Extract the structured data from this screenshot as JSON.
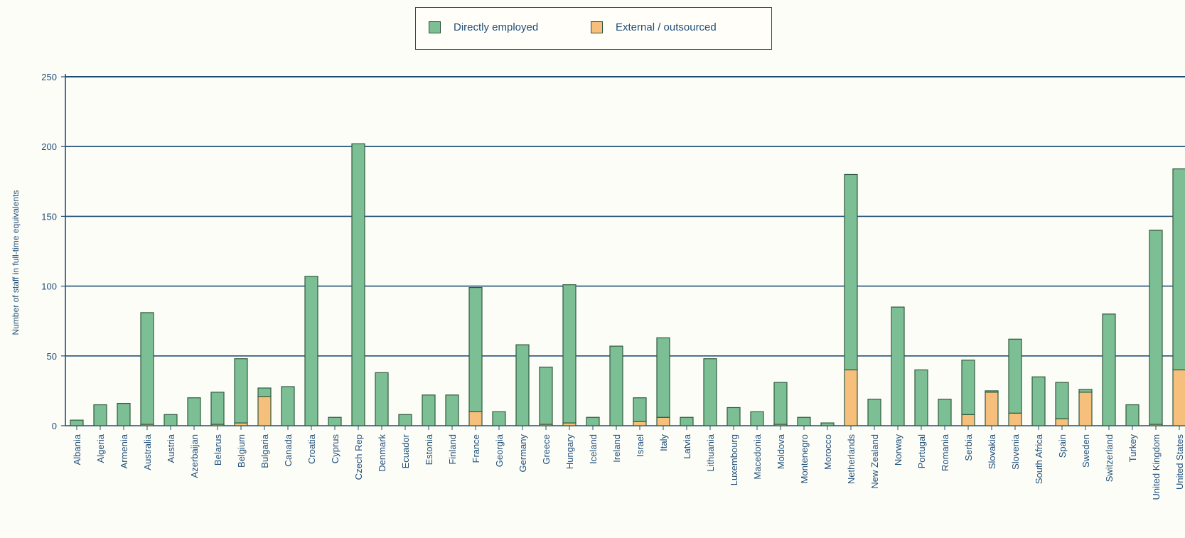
{
  "chart_data": {
    "type": "bar",
    "stacked": true,
    "title": "",
    "xlabel": "",
    "ylabel": "Number of staff in full-time equivalents",
    "ylim": [
      0,
      250
    ],
    "yticks": [
      0,
      50,
      100,
      150,
      200,
      250
    ],
    "grid": "horizontal",
    "legend_position": "top-center",
    "categories": [
      "Albania",
      "Algeria",
      "Armenia",
      "Australia",
      "Austria",
      "Azerbaijan",
      "Belarus",
      "Belgium",
      "Bulgaria",
      "Canada",
      "Croatia",
      "Cyprus",
      "Czech Rep",
      "Denmark",
      "Ecuador",
      "Estonia",
      "Finland",
      "France",
      "Georgia",
      "Germany",
      "Greece",
      "Hungary",
      "Iceland",
      "Ireland",
      "Israel",
      "Italy",
      "Latvia",
      "Lithuania",
      "Luxembourg",
      "Macedonia",
      "Moldova",
      "Montenegro",
      "Morocco",
      "Netherlands",
      "New Zealand",
      "Norway",
      "Portugal",
      "Romania",
      "Serbia",
      "Slovakia",
      "Slovenia",
      "South Africa",
      "Spain",
      "Sweden",
      "Switzerland",
      "Turkey",
      "United Kingdom",
      "United States"
    ],
    "series": [
      {
        "name": "Directly employed",
        "color": "#7dbf95",
        "values": [
          4,
          15,
          16,
          80,
          8,
          20,
          23,
          46,
          6,
          28,
          107,
          6,
          202,
          38,
          8,
          22,
          22,
          89,
          10,
          58,
          41,
          99,
          6,
          57,
          17,
          57,
          6,
          48,
          13,
          10,
          30,
          6,
          2,
          140,
          19,
          85,
          40,
          19,
          39,
          1,
          53,
          35,
          26,
          2,
          80,
          15,
          139,
          144
        ]
      },
      {
        "name": "External / outsourced",
        "color": "#f7bf7c",
        "values": [
          0,
          0,
          0,
          1,
          0,
          0,
          1,
          2,
          21,
          0,
          0,
          0,
          0,
          0,
          0,
          0,
          0,
          10,
          0,
          0,
          1,
          2,
          0,
          0,
          3,
          6,
          0,
          0,
          0,
          0,
          1,
          0,
          0,
          40,
          0,
          0,
          0,
          0,
          8,
          24,
          9,
          0,
          5,
          24,
          0,
          0,
          1,
          40
        ]
      }
    ]
  }
}
